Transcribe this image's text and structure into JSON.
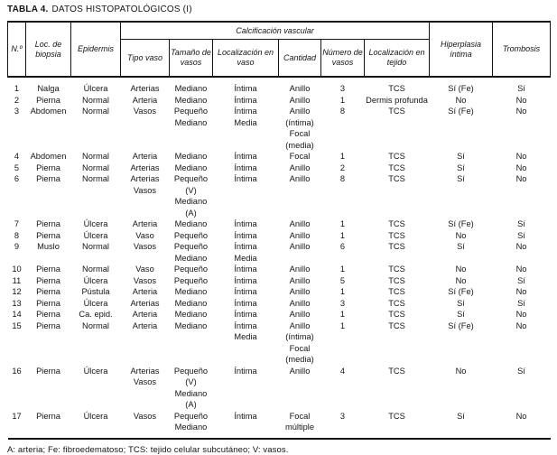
{
  "title": {
    "label": "TABLA 4.",
    "text": "DATOS HISTOPATOLÓGICOS (I)"
  },
  "table": {
    "header": {
      "num": "N.º",
      "biopsy_location": "Loc. de biopsia",
      "epidermis": "Epidermis",
      "vascular_calcification": "Calcificación vascular",
      "vessel_type": "Tipo vaso",
      "vessel_size": "Tamaño de vasos",
      "location_in_vessel": "Localización en vaso",
      "quantity": "Cantidad",
      "vessel_count": "Número de vasos",
      "tissue_location": "Localización en tejido",
      "intimal_hyperplasia": "Hiperplasia íntima",
      "thrombosis": "Trombosis"
    },
    "rows": [
      [
        "1",
        "Nalga",
        "Úlcera",
        "Arterias",
        "Mediano",
        "Íntima",
        "Anillo",
        "3",
        "TCS",
        "Sí (Fe)",
        "Sí"
      ],
      [
        "2",
        "Pierna",
        "Normal",
        "Arteria",
        "Mediano",
        "Íntima",
        "Anillo",
        "1",
        "Dermis profunda",
        "No",
        "No"
      ],
      [
        "3",
        "Abdomen",
        "Normal",
        "Vasos",
        [
          "Pequeño",
          "Mediano"
        ],
        [
          "Íntima",
          "Media"
        ],
        [
          "Anillo (íntima)",
          "Focal (media)"
        ],
        "8",
        "TCS",
        "Sí (Fe)",
        "No"
      ],
      [
        "4",
        "Abdomen",
        "Normal",
        "Arteria",
        "Mediano",
        "Íntima",
        "Focal",
        "1",
        "TCS",
        "Sí",
        "No"
      ],
      [
        "5",
        "Pierna",
        "Normal",
        "Arterias",
        "Mediano",
        "Íntima",
        "Anillo",
        "2",
        "TCS",
        "Sí",
        "No"
      ],
      [
        "6",
        "Pierna",
        "Normal",
        [
          "Arterias",
          "Vasos"
        ],
        [
          "Pequeño (V)",
          "Mediano (A)"
        ],
        "Íntima",
        "Anillo",
        "8",
        "TCS",
        "Sí",
        "No"
      ],
      [
        "7",
        "Pierna",
        "Úlcera",
        "Arteria",
        "Mediano",
        "Íntima",
        "Anillo",
        "1",
        "TCS",
        "Sí (Fe)",
        "Sí"
      ],
      [
        "8",
        "Pierna",
        "Úlcera",
        "Vaso",
        "Pequeño",
        "Íntima",
        "Anillo",
        "1",
        "TCS",
        "No",
        "Sí"
      ],
      [
        "9",
        "Muslo",
        "Normal",
        "Vasos",
        [
          "Pequeño",
          "Mediano"
        ],
        [
          "Íntima",
          "Media"
        ],
        "Anillo",
        "6",
        "TCS",
        "Sí",
        "No"
      ],
      [
        "10",
        "Pierna",
        "Normal",
        "Vaso",
        "Pequeño",
        "Íntima",
        "Anillo",
        "1",
        "TCS",
        "No",
        "No"
      ],
      [
        "11",
        "Pierna",
        "Úlcera",
        "Vasos",
        "Pequeño",
        "Íntima",
        "Anillo",
        "5",
        "TCS",
        "No",
        "Sí"
      ],
      [
        "12",
        "Pierna",
        "Pústula",
        "Arteria",
        "Mediano",
        "Íntima",
        "Anillo",
        "1",
        "TCS",
        "Sí (Fe)",
        "No"
      ],
      [
        "13",
        "Pierna",
        "Úlcera",
        "Arterias",
        "Mediano",
        "Íntima",
        "Anillo",
        "3",
        "TCS",
        "Sí",
        "Sí"
      ],
      [
        "14",
        "Pierna",
        "Ca. epid.",
        "Arteria",
        "Mediano",
        "Íntima",
        "Anillo",
        "1",
        "TCS",
        "Sí",
        "No"
      ],
      [
        "15",
        "Pierna",
        "Normal",
        "Arteria",
        "Mediano",
        [
          "Íntima",
          "Media"
        ],
        [
          "Anillo (íntima)",
          "Focal (media)"
        ],
        "1",
        "TCS",
        "Sí (Fe)",
        "No"
      ],
      [
        "16",
        "Pierna",
        "Úlcera",
        [
          "Arterias",
          "Vasos"
        ],
        [
          "Pequeño (V)",
          "Mediano (A)"
        ],
        "Íntima",
        "Anillo",
        "4",
        "TCS",
        "No",
        "Sí"
      ],
      [
        "17",
        "Pierna",
        "Úlcera",
        "Vasos",
        [
          "Pequeño",
          "Mediano"
        ],
        "Íntima",
        "Focal múltiple",
        "3",
        "TCS",
        "Sí",
        "No"
      ]
    ]
  },
  "footnote": "A: arteria; Fe: fibroedematoso; TCS: tejido celular subcutáneo; V: vasos.",
  "colors": {
    "text": "#151515",
    "border": "#151515",
    "background": "#ffffff"
  }
}
